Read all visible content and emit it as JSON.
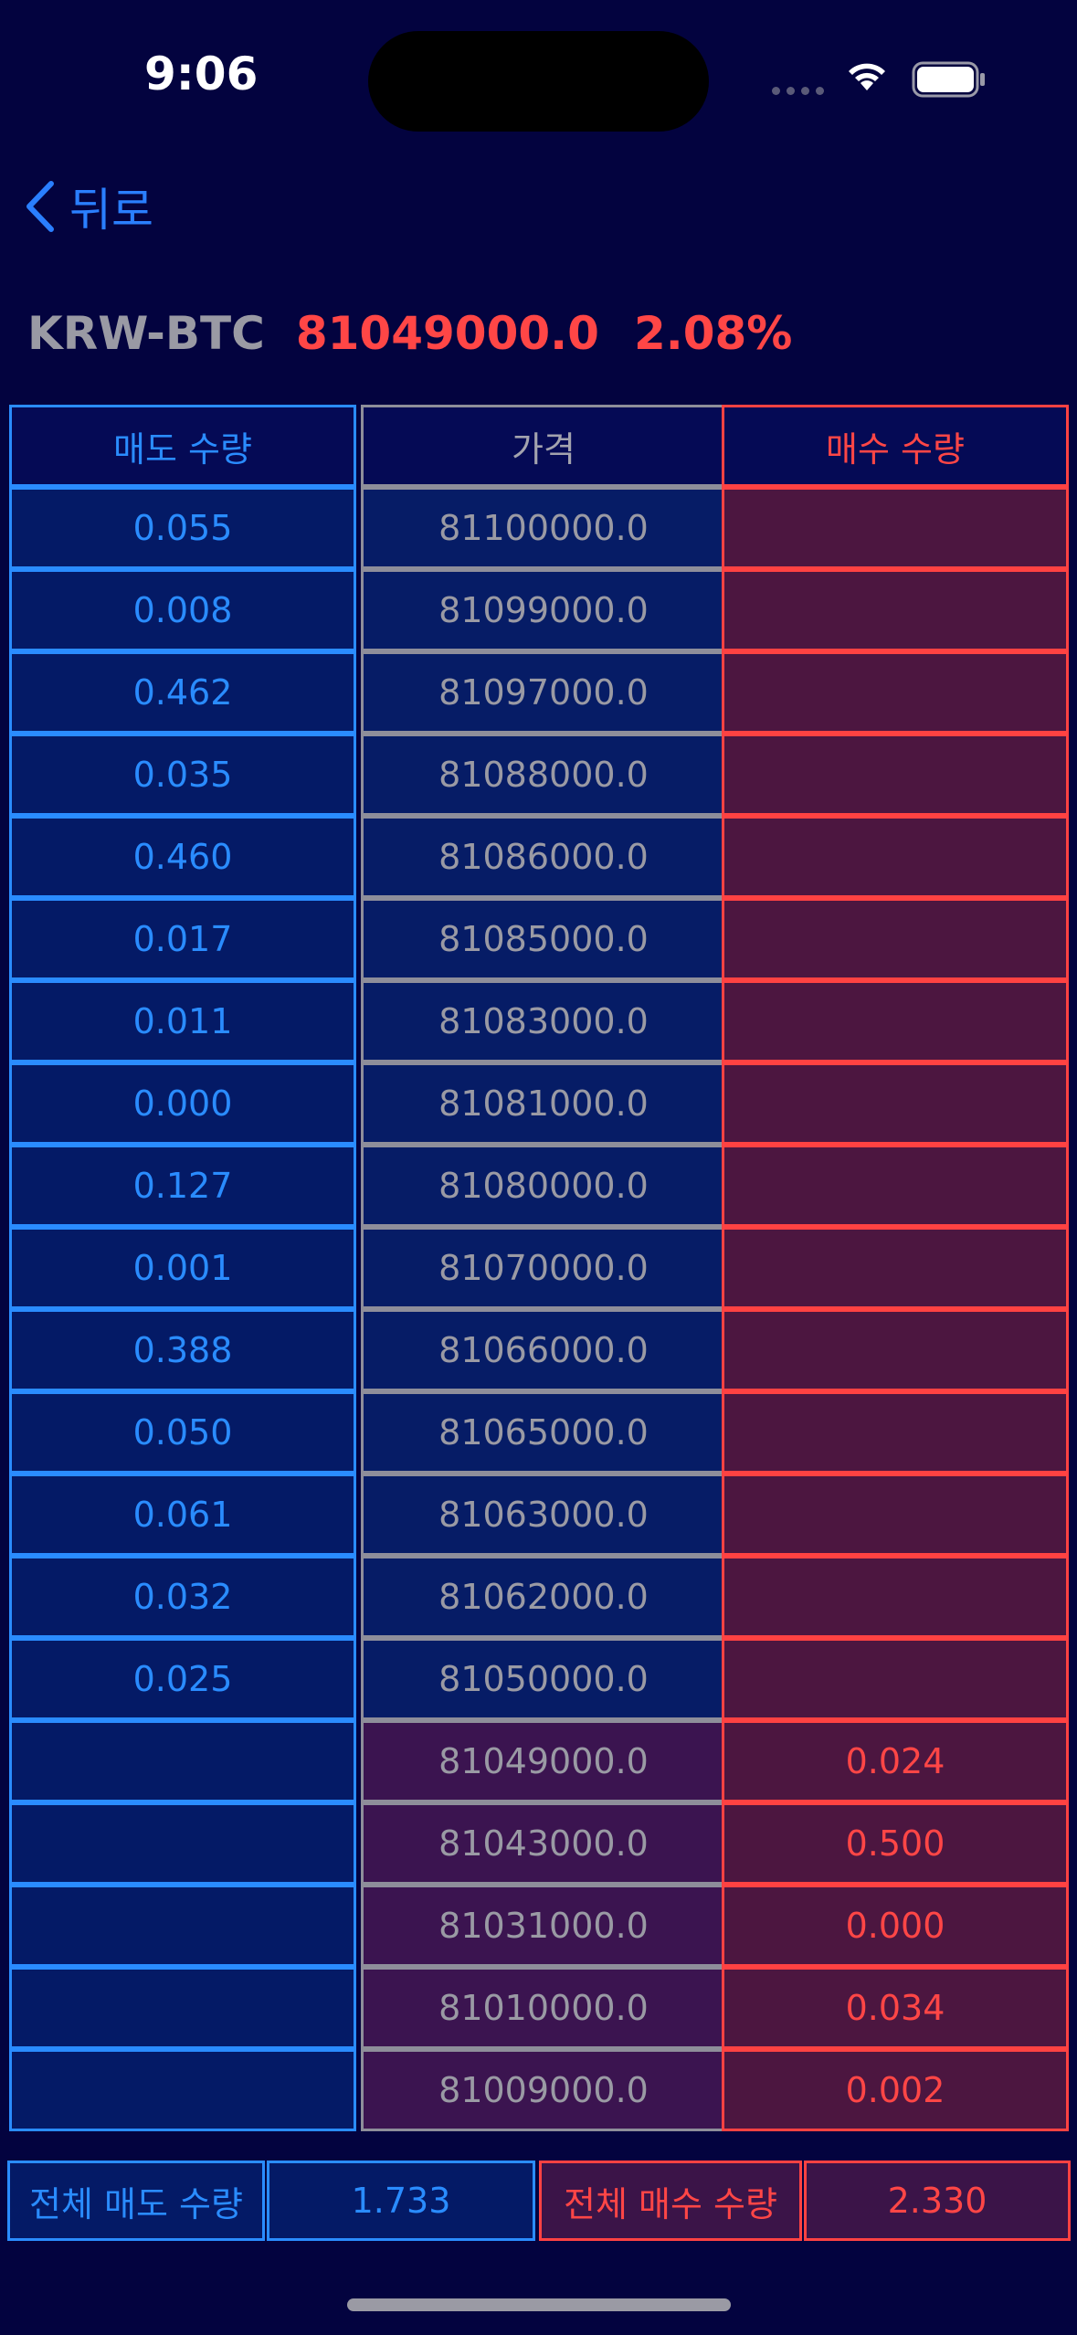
{
  "status_bar": {
    "time": "9:06"
  },
  "nav": {
    "back_label": "뒤로"
  },
  "ticker": {
    "symbol": "KRW-BTC",
    "price": "81049000.0",
    "change": "2.08%"
  },
  "headers": {
    "ask": "매도 수량",
    "price": "가격",
    "bid": "매수 수량"
  },
  "asks": [
    {
      "qty": "0.055",
      "price": "81100000.0"
    },
    {
      "qty": "0.008",
      "price": "81099000.0"
    },
    {
      "qty": "0.462",
      "price": "81097000.0"
    },
    {
      "qty": "0.035",
      "price": "81088000.0"
    },
    {
      "qty": "0.460",
      "price": "81086000.0"
    },
    {
      "qty": "0.017",
      "price": "81085000.0"
    },
    {
      "qty": "0.011",
      "price": "81083000.0"
    },
    {
      "qty": "0.000",
      "price": "81081000.0"
    },
    {
      "qty": "0.127",
      "price": "81080000.0"
    },
    {
      "qty": "0.001",
      "price": "81070000.0"
    },
    {
      "qty": "0.388",
      "price": "81066000.0"
    },
    {
      "qty": "0.050",
      "price": "81065000.0"
    },
    {
      "qty": "0.061",
      "price": "81063000.0"
    },
    {
      "qty": "0.032",
      "price": "81062000.0"
    },
    {
      "qty": "0.025",
      "price": "81050000.0"
    }
  ],
  "bids": [
    {
      "price": "81049000.0",
      "qty": "0.024"
    },
    {
      "price": "81043000.0",
      "qty": "0.500"
    },
    {
      "price": "81031000.0",
      "qty": "0.000"
    },
    {
      "price": "81010000.0",
      "qty": "0.034"
    },
    {
      "price": "81009000.0",
      "qty": "0.002"
    }
  ],
  "totals": {
    "ask_label": "전체 매도 수량",
    "ask_value": "1.733",
    "bid_label": "전체 매수 수량",
    "bid_value": "2.330"
  }
}
